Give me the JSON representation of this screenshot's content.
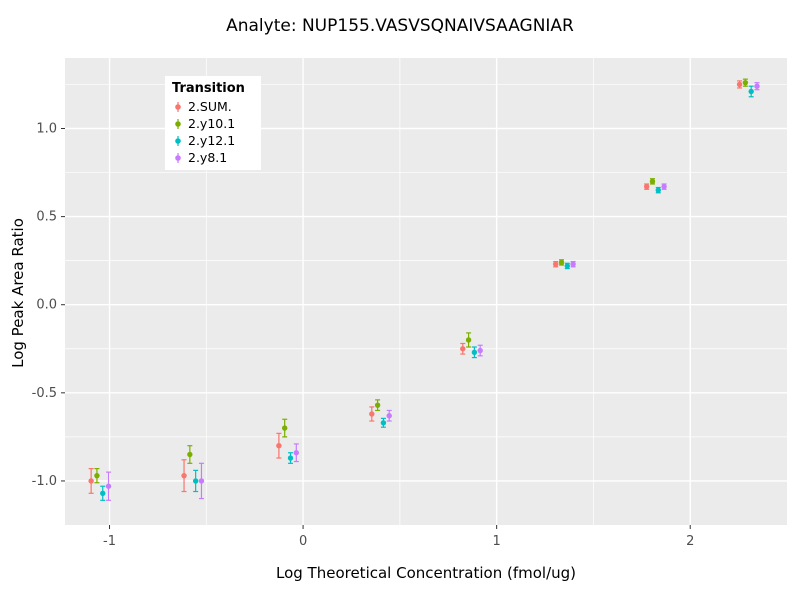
{
  "title": "Analyte: NUP155.VASVSQNAIVSAAGNIAR",
  "chart_data": {
    "type": "scatter",
    "title": "Analyte: NUP155.VASVSQNAIVSAAGNIAR",
    "xlabel": "Log Theoretical Concentration (fmol/ug)",
    "ylabel": "Log Peak Area Ratio",
    "plot_bg": "#EBEBEB",
    "grid": true,
    "grid_color": "#FFFFFF",
    "tick_label_color": "#4D4D4D",
    "xlim": [
      -1.23,
      2.5
    ],
    "ylim": [
      -1.25,
      1.4
    ],
    "x_ticks": [
      {
        "v": -1,
        "label": "-1"
      },
      {
        "v": 0,
        "label": "0"
      },
      {
        "v": 1,
        "label": "1"
      },
      {
        "v": 2,
        "label": "2"
      }
    ],
    "y_ticks": [
      {
        "v": -1.0,
        "label": "-1.0"
      },
      {
        "v": -0.5,
        "label": "-0.5"
      },
      {
        "v": 0.0,
        "label": "0.0"
      },
      {
        "v": 0.5,
        "label": "0.5"
      },
      {
        "v": 1.0,
        "label": "1.0"
      }
    ],
    "x_minor_ticks": [
      -0.5,
      0.5,
      1.5
    ],
    "y_minor_ticks": [
      -0.75,
      -0.25,
      0.25,
      0.75,
      1.25
    ],
    "legend_title": "Transition",
    "legend_position": "top-left-inside",
    "x": [
      -1.05,
      -0.57,
      -0.08,
      0.4,
      0.87,
      1.35,
      1.82,
      2.3
    ],
    "series": [
      {
        "name": "2.SUM.",
        "color": "#F8766D",
        "dx": -0.045,
        "y": [
          -1.0,
          -0.97,
          -0.8,
          -0.62,
          -0.25,
          0.23,
          0.67,
          1.25
        ],
        "err": [
          0.07,
          0.09,
          0.07,
          0.04,
          0.03,
          0.015,
          0.015,
          0.02
        ]
      },
      {
        "name": "2.y10.1",
        "color": "#7CAE00",
        "dx": -0.015,
        "y": [
          -0.97,
          -0.85,
          -0.7,
          -0.57,
          -0.2,
          0.24,
          0.7,
          1.26
        ],
        "err": [
          0.04,
          0.05,
          0.05,
          0.03,
          0.04,
          0.015,
          0.015,
          0.02
        ]
      },
      {
        "name": "2.y12.1",
        "color": "#00BFC4",
        "dx": 0.015,
        "y": [
          -1.07,
          -1.0,
          -0.87,
          -0.67,
          -0.27,
          0.22,
          0.65,
          1.21
        ],
        "err": [
          0.04,
          0.06,
          0.03,
          0.025,
          0.03,
          0.015,
          0.015,
          0.03
        ]
      },
      {
        "name": "2.y8.1",
        "color": "#C77CFF",
        "dx": 0.045,
        "y": [
          -1.03,
          -1.0,
          -0.84,
          -0.63,
          -0.26,
          0.23,
          0.67,
          1.24
        ],
        "err": [
          0.08,
          0.1,
          0.05,
          0.03,
          0.03,
          0.015,
          0.015,
          0.02
        ]
      }
    ]
  }
}
